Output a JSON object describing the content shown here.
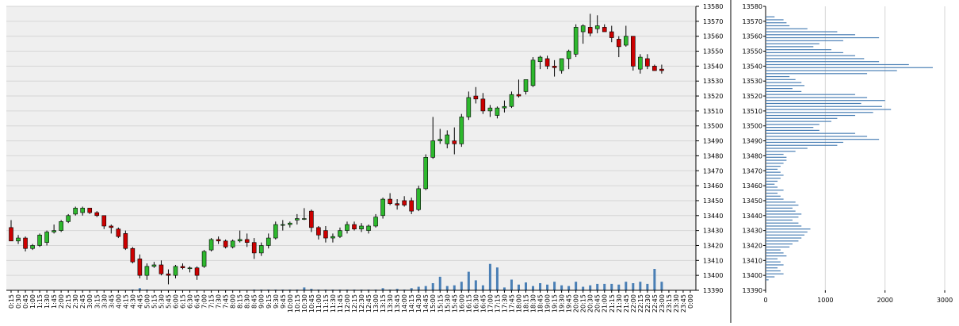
{
  "chart_data": [
    {
      "type": "candlestick",
      "y_range": [
        13390,
        13580
      ],
      "y_ticks": [
        13390,
        13400,
        13410,
        13420,
        13430,
        13440,
        13450,
        13460,
        13470,
        13480,
        13490,
        13500,
        13510,
        13520,
        13530,
        13540,
        13550,
        13560,
        13570,
        13580
      ],
      "x_labels": [
        "0:15",
        "0:30",
        "0:45",
        "1:00",
        "1:15",
        "1:30",
        "1:45",
        "2:00",
        "2:15",
        "2:30",
        "2:45",
        "3:00",
        "3:15",
        "3:30",
        "3:45",
        "4:00",
        "4:15",
        "4:30",
        "4:45",
        "5:00",
        "5:15",
        "5:30",
        "5:45",
        "6:00",
        "6:15",
        "6:30",
        "6:45",
        "7:00",
        "7:15",
        "7:30",
        "7:45",
        "8:00",
        "8:15",
        "8:30",
        "8:45",
        "9:00",
        "9:15",
        "9:30",
        "9:45",
        "10:00",
        "10:15",
        "10:30",
        "10:45",
        "11:00",
        "11:15",
        "11:30",
        "11:45",
        "12:00",
        "12:15",
        "12:30",
        "12:45",
        "13:00",
        "13:15",
        "13:30",
        "13:45",
        "14:00",
        "14:15",
        "14:30",
        "14:45",
        "15:00",
        "15:15",
        "15:30",
        "15:45",
        "16:00",
        "16:15",
        "16:30",
        "16:45",
        "17:00",
        "17:15",
        "17:30",
        "17:45",
        "18:00",
        "18:15",
        "18:30",
        "18:45",
        "19:00",
        "19:15",
        "19:30",
        "19:45",
        "20:00",
        "20:15",
        "20:30",
        "20:45",
        "21:00",
        "21:15",
        "21:30",
        "21:45",
        "22:00",
        "22:15",
        "22:30",
        "22:45",
        "23:00",
        "23:15",
        "23:30",
        "23:45",
        "0:00"
      ],
      "candles": [
        [
          "0:15",
          13432,
          13437,
          13423,
          13423
        ],
        [
          "0:30",
          13423,
          13427,
          13421,
          13425
        ],
        [
          "0:45",
          13425,
          13426,
          13416,
          13418
        ],
        [
          "1:00",
          13418,
          13421,
          13417,
          13420
        ],
        [
          "1:15",
          13420,
          13428,
          13419,
          13427
        ],
        [
          "1:30",
          13422,
          13430,
          13420,
          13429
        ],
        [
          "1:45",
          13429,
          13434,
          13428,
          13430
        ],
        [
          "2:00",
          13430,
          13437,
          13429,
          13436
        ],
        [
          "2:15",
          13436,
          13441,
          13435,
          13440
        ],
        [
          "2:30",
          13441,
          13446,
          13440,
          13445
        ],
        [
          "2:45",
          13442,
          13446,
          13440,
          13445
        ],
        [
          "3:00",
          13445,
          13445,
          13441,
          13442
        ],
        [
          "3:15",
          13442,
          13443,
          13439,
          13440
        ],
        [
          "3:30",
          13440,
          13440,
          13431,
          13433
        ],
        [
          "3:45",
          13433,
          13434,
          13428,
          13432
        ],
        [
          "4:00",
          13431,
          13432,
          13425,
          13426
        ],
        [
          "4:15",
          13428,
          13430,
          13417,
          13418
        ],
        [
          "4:30",
          13418,
          13419,
          13408,
          13409
        ],
        [
          "4:45",
          13411,
          13414,
          13398,
          13400
        ],
        [
          "5:00",
          13400,
          13408,
          13397,
          13406
        ],
        [
          "5:15",
          13406,
          13409,
          13405,
          13407
        ],
        [
          "5:30",
          13407,
          13410,
          13400,
          13401
        ],
        [
          "5:45",
          13401,
          13404,
          13394,
          13400
        ],
        [
          "6:00",
          13400,
          13407,
          13398,
          13406
        ],
        [
          "6:15",
          13406,
          13408,
          13404,
          13405
        ],
        [
          "6:30",
          13405,
          13406,
          13402,
          13405
        ],
        [
          "6:45",
          13405,
          13406,
          13397,
          13400
        ],
        [
          "7:00",
          13406,
          13417,
          13405,
          13416
        ],
        [
          "7:15",
          13417,
          13425,
          13416,
          13424
        ],
        [
          "7:30",
          13424,
          13426,
          13421,
          13423
        ],
        [
          "7:45",
          13423,
          13424,
          13418,
          13419
        ],
        [
          "8:00",
          13419,
          13424,
          13418,
          13423
        ],
        [
          "8:15",
          13423,
          13430,
          13422,
          13424
        ],
        [
          "8:30",
          13424,
          13428,
          13419,
          13422
        ],
        [
          "8:45",
          13422,
          13425,
          13411,
          13415
        ],
        [
          "9:00",
          13415,
          13422,
          13413,
          13420
        ],
        [
          "9:15",
          13420,
          13428,
          13418,
          13425
        ],
        [
          "9:30",
          13425,
          13436,
          13424,
          13434
        ],
        [
          "9:45",
          13434,
          13437,
          13430,
          13434
        ],
        [
          "10:00",
          13434,
          13436,
          13432,
          13435
        ],
        [
          "10:15",
          13437,
          13441,
          13434,
          13438
        ],
        [
          "10:30",
          13438,
          13445,
          13437,
          13438
        ],
        [
          "10:45",
          13443,
          13444,
          13429,
          13432
        ],
        [
          "11:00",
          13432,
          13433,
          13424,
          13427
        ],
        [
          "11:15",
          13430,
          13433,
          13422,
          13425
        ],
        [
          "11:30",
          13425,
          13428,
          13422,
          13426
        ],
        [
          "11:45",
          13426,
          13432,
          13425,
          13430
        ],
        [
          "12:00",
          13430,
          13436,
          13428,
          13434
        ],
        [
          "12:15",
          13434,
          13436,
          13430,
          13431
        ],
        [
          "12:30",
          13431,
          13435,
          13429,
          13433
        ],
        [
          "12:45",
          13430,
          13434,
          13428,
          13433
        ],
        [
          "13:00",
          13433,
          13441,
          13432,
          13439
        ],
        [
          "13:15",
          13440,
          13452,
          13438,
          13451
        ],
        [
          "13:30",
          13451,
          13455,
          13447,
          13448
        ],
        [
          "13:45",
          13448,
          13451,
          13444,
          13447
        ],
        [
          "14:00",
          13450,
          13453,
          13446,
          13447
        ],
        [
          "14:15",
          13450,
          13452,
          13441,
          13443
        ],
        [
          "14:30",
          13444,
          13460,
          13443,
          13458
        ],
        [
          "14:45",
          13458,
          13481,
          13457,
          13479
        ],
        [
          "15:00",
          13479,
          13506,
          13478,
          13490
        ],
        [
          "15:15",
          13490,
          13498,
          13488,
          13491
        ],
        [
          "15:30",
          13488,
          13497,
          13485,
          13494
        ],
        [
          "15:45",
          13490,
          13499,
          13481,
          13488
        ],
        [
          "16:00",
          13488,
          13508,
          13486,
          13506
        ],
        [
          "16:15",
          13506,
          13523,
          13504,
          13519
        ],
        [
          "16:30",
          13520,
          13526,
          13515,
          13518
        ],
        [
          "16:45",
          13518,
          13522,
          13508,
          13510
        ],
        [
          "17:00",
          13510,
          13514,
          13506,
          13512
        ],
        [
          "17:15",
          13507,
          13513,
          13505,
          13512
        ],
        [
          "17:30",
          13512,
          13517,
          13509,
          13513
        ],
        [
          "17:45",
          13513,
          13523,
          13512,
          13521
        ],
        [
          "18:00",
          13521,
          13531,
          13519,
          13520
        ],
        [
          "18:15",
          13523,
          13531,
          13521,
          13531
        ],
        [
          "18:30",
          13527,
          13546,
          13526,
          13544
        ],
        [
          "18:45",
          13543,
          13547,
          13538,
          13546
        ],
        [
          "19:00",
          13545,
          13547,
          13538,
          13540
        ],
        [
          "19:15",
          13540,
          13544,
          13533,
          13539
        ],
        [
          "19:30",
          13537,
          13544,
          13535,
          13545
        ],
        [
          "19:45",
          13545,
          13551,
          13538,
          13550
        ],
        [
          "20:00",
          13548,
          13568,
          13546,
          13566
        ],
        [
          "20:15",
          13563,
          13568,
          13555,
          13567
        ],
        [
          "20:30",
          13566,
          13575,
          13560,
          13562
        ],
        [
          "20:45",
          13565,
          13574,
          13562,
          13567
        ],
        [
          "21:00",
          13566,
          13568,
          13564,
          13563
        ],
        [
          "21:15",
          13563,
          13567,
          13556,
          13559
        ],
        [
          "21:30",
          13558,
          13560,
          13546,
          13553
        ],
        [
          "21:45",
          13554,
          13567,
          13553,
          13560
        ],
        [
          "22:00",
          13560,
          13560,
          13537,
          13540
        ],
        [
          "22:15",
          13538,
          13548,
          13535,
          13546
        ],
        [
          "22:30",
          13545,
          13548,
          13538,
          13540
        ],
        [
          "22:45",
          13540,
          13541,
          13537,
          13537
        ],
        [
          "23:00",
          13538,
          13541,
          13535,
          13537
        ]
      ],
      "volume": [
        0,
        0,
        0,
        0,
        0,
        0,
        0,
        0,
        0,
        0,
        0,
        0,
        0,
        0,
        0,
        0,
        0,
        1,
        3,
        1,
        0,
        0,
        0,
        0,
        0,
        0,
        0,
        0,
        0,
        0,
        0,
        0,
        0,
        0,
        1,
        1,
        1,
        1,
        1,
        1,
        1,
        4,
        2,
        1,
        1,
        1,
        1,
        1,
        1,
        1,
        1,
        1,
        3,
        1,
        2,
        1,
        3,
        5,
        6,
        10,
        19,
        6,
        7,
        12,
        26,
        14,
        7,
        37,
        32,
        4,
        15,
        8,
        11,
        6,
        10,
        8,
        12,
        7,
        6,
        12,
        5,
        7,
        9,
        9,
        9,
        8,
        12,
        10,
        12,
        9,
        30,
        12
      ],
      "colors": {
        "up": "#2eb82e",
        "down": "#cc0000",
        "grid": "#d6d6d6",
        "panel": "#efefef",
        "volume": "#4a7fb5"
      }
    },
    {
      "type": "bar",
      "orientation": "horizontal",
      "x_range": [
        0,
        3000
      ],
      "x_ticks": [
        0,
        1000,
        2000,
        3000
      ],
      "y_range": [
        13390,
        13580
      ],
      "y_ticks": [
        13390,
        13400,
        13410,
        13420,
        13430,
        13440,
        13450,
        13460,
        13470,
        13480,
        13490,
        13500,
        13510,
        13520,
        13530,
        13540,
        13550,
        13560,
        13570,
        13580
      ],
      "categories": [
        13397,
        13399,
        13401,
        13403,
        13405,
        13407,
        13409,
        13411,
        13413,
        13415,
        13417,
        13419,
        13421,
        13423,
        13425,
        13427,
        13429,
        13431,
        13433,
        13435,
        13437,
        13439,
        13441,
        13443,
        13445,
        13447,
        13449,
        13451,
        13453,
        13455,
        13457,
        13459,
        13461,
        13463,
        13465,
        13467,
        13469,
        13471,
        13473,
        13475,
        13477,
        13479,
        13481,
        13483,
        13485,
        13487,
        13489,
        13491,
        13493,
        13495,
        13497,
        13499,
        13501,
        13503,
        13505,
        13507,
        13509,
        13511,
        13513,
        13515,
        13517,
        13519,
        13521,
        13523,
        13525,
        13527,
        13529,
        13531,
        13533,
        13535,
        13537,
        13539,
        13541,
        13543,
        13545,
        13547,
        13549,
        13551,
        13553,
        13555,
        13557,
        13559,
        13561,
        13563,
        13565,
        13567,
        13569,
        13571,
        13573
      ],
      "values": [
        50,
        150,
        300,
        250,
        200,
        300,
        250,
        200,
        350,
        300,
        250,
        400,
        450,
        550,
        600,
        650,
        700,
        750,
        600,
        550,
        450,
        550,
        600,
        500,
        450,
        550,
        500,
        300,
        250,
        200,
        300,
        200,
        150,
        200,
        250,
        300,
        250,
        200,
        250,
        300,
        350,
        350,
        300,
        500,
        700,
        1200,
        1300,
        1900,
        1700,
        1500,
        900,
        800,
        900,
        1100,
        1200,
        1500,
        1800,
        2100,
        1950,
        1600,
        2000,
        1700,
        1500,
        600,
        450,
        650,
        600,
        500,
        400,
        1700,
        2200,
        2800,
        2400,
        1900,
        1650,
        1500,
        1300,
        1100,
        800,
        900,
        1300,
        1900,
        1500,
        1200,
        700,
        400,
        350,
        300,
        150
      ],
      "colors": {
        "bar": "#4a7fb5",
        "grid": "#d6d6d6"
      }
    }
  ]
}
